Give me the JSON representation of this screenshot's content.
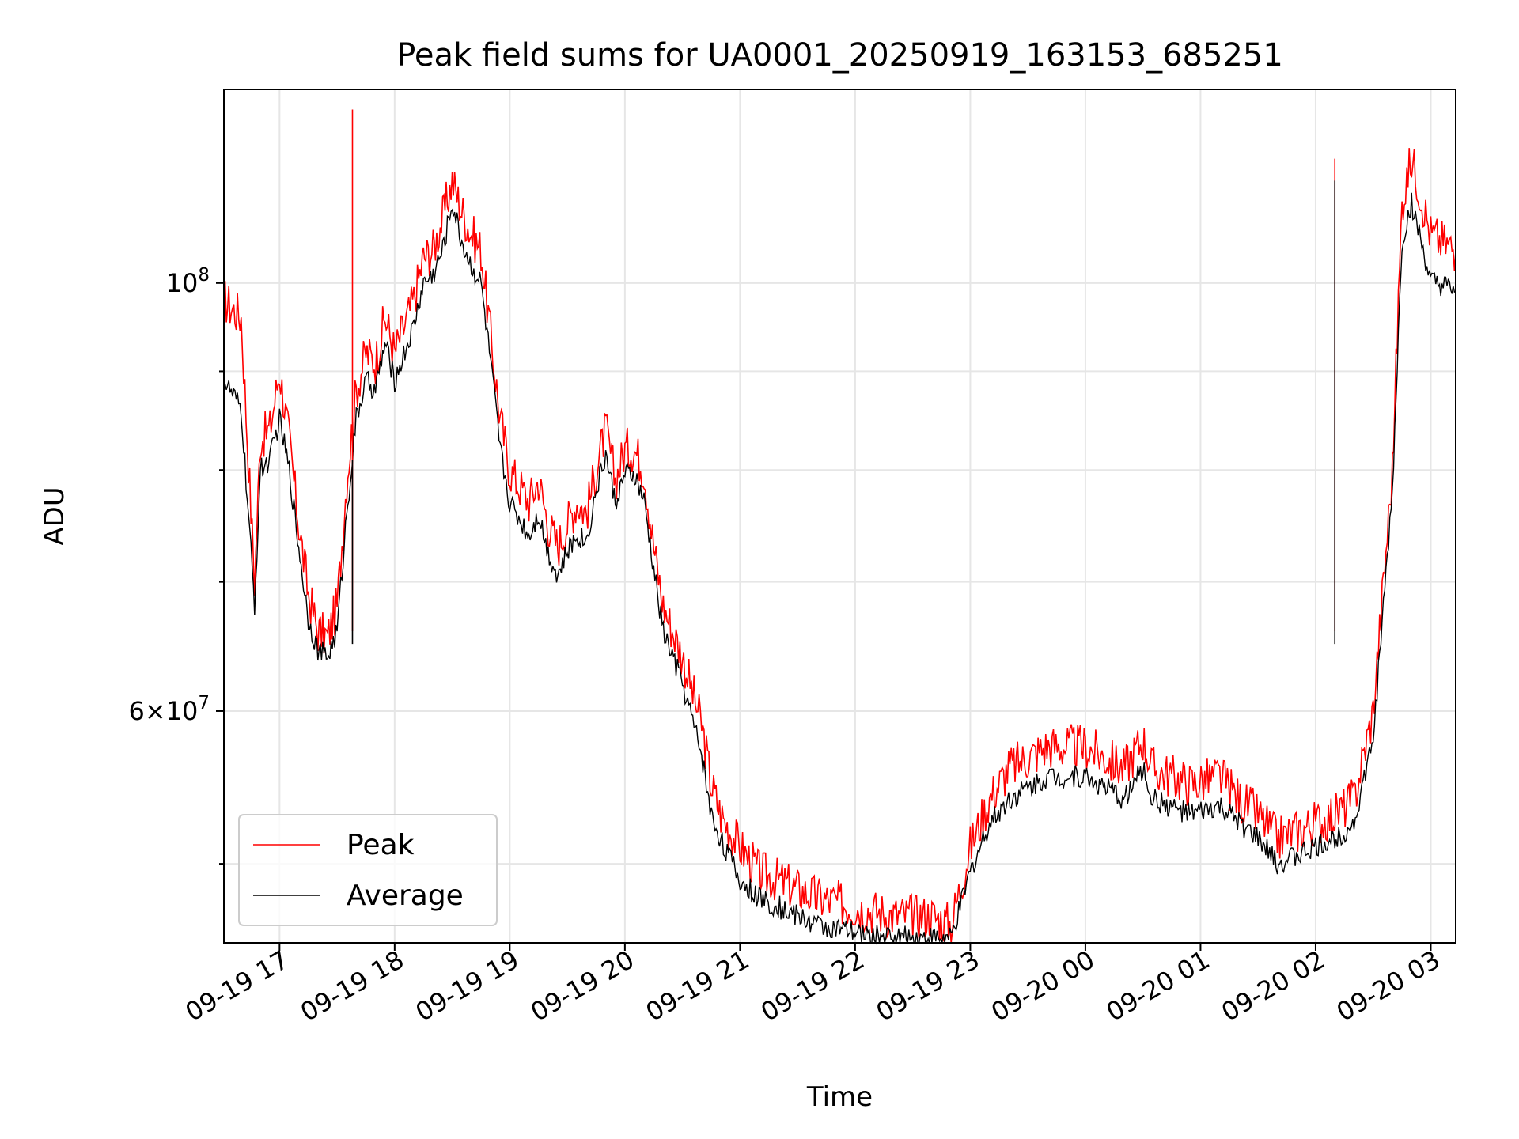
{
  "chart_data": {
    "type": "line",
    "title": "Peak field sums for UA0001_20250919_163153_685251",
    "xlabel": "Time",
    "ylabel": "ADU",
    "x_axis_type": "datetime",
    "xlim": [
      "2025-09-19 16:31",
      "2025-09-20 03:13"
    ],
    "x_ticks": [
      "2025-09-19 17:00",
      "2025-09-19 18:00",
      "2025-09-19 19:00",
      "2025-09-19 20:00",
      "2025-09-19 21:00",
      "2025-09-19 22:00",
      "2025-09-19 23:00",
      "2025-09-20 00:00",
      "2025-09-20 01:00",
      "2025-09-20 02:00",
      "2025-09-20 03:00"
    ],
    "x_tick_labels": [
      "09-19 17",
      "09-19 18",
      "09-19 19",
      "09-19 20",
      "09-19 21",
      "09-19 22",
      "09-19 23",
      "09-20 00",
      "09-20 01",
      "09-20 02",
      "09-20 03"
    ],
    "y_scale": "log",
    "ylim": [
      45500000,
      126000000
    ],
    "y_ticks": [
      100000000,
      60000000
    ],
    "y_tick_labels": [
      "10^8",
      "6×10^7"
    ],
    "y_minor_ticks": [
      50000000,
      70000000,
      80000000,
      90000000
    ],
    "grid": true,
    "legend_position": "lower left",
    "series": [
      {
        "name": "Peak",
        "color": "#ff0000",
        "x": [
          "2025-09-19 16:31",
          "2025-09-19 16:40",
          "2025-09-19 16:47",
          "2025-09-19 16:50",
          "2025-09-19 16:55",
          "2025-09-19 17:00",
          "2025-09-19 17:05",
          "2025-09-19 17:10",
          "2025-09-19 17:15",
          "2025-09-19 17:20",
          "2025-09-19 17:25",
          "2025-09-19 17:30",
          "2025-09-19 17:35",
          "2025-09-19 17:40",
          "2025-09-19 17:45",
          "2025-09-19 17:50",
          "2025-09-19 17:55",
          "2025-09-19 18:00",
          "2025-09-19 18:10",
          "2025-09-19 18:15",
          "2025-09-19 18:20",
          "2025-09-19 18:25",
          "2025-09-19 18:30",
          "2025-09-19 18:35",
          "2025-09-19 18:40",
          "2025-09-19 18:45",
          "2025-09-19 18:50",
          "2025-09-19 18:55",
          "2025-09-19 19:00",
          "2025-09-19 19:10",
          "2025-09-19 19:15",
          "2025-09-19 19:20",
          "2025-09-19 19:25",
          "2025-09-19 19:30",
          "2025-09-19 19:35",
          "2025-09-19 19:40",
          "2025-09-19 19:45",
          "2025-09-19 19:50",
          "2025-09-19 19:55",
          "2025-09-19 20:00",
          "2025-09-19 20:05",
          "2025-09-19 20:10",
          "2025-09-19 20:15",
          "2025-09-19 20:20",
          "2025-09-19 20:30",
          "2025-09-19 20:40",
          "2025-09-19 20:45",
          "2025-09-19 20:50",
          "2025-09-19 21:00",
          "2025-09-19 21:10",
          "2025-09-19 21:20",
          "2025-09-19 21:40",
          "2025-09-19 22:00",
          "2025-09-19 22:20",
          "2025-09-19 22:40",
          "2025-09-19 22:50",
          "2025-09-19 23:00",
          "2025-09-19 23:10",
          "2025-09-19 23:20",
          "2025-09-19 23:40",
          "2025-09-20 00:00",
          "2025-09-20 00:20",
          "2025-09-20 00:30",
          "2025-09-20 00:35",
          "2025-09-20 00:45",
          "2025-09-20 00:55",
          "2025-09-20 01:10",
          "2025-09-20 01:20",
          "2025-09-20 01:30",
          "2025-09-20 01:40",
          "2025-09-20 02:00",
          "2025-09-20 02:10",
          "2025-09-20 02:20",
          "2025-09-20 02:30",
          "2025-09-20 02:40",
          "2025-09-20 02:45",
          "2025-09-20 02:50",
          "2025-09-20 03:00",
          "2025-09-20 03:13"
        ],
        "values": [
          98000000,
          96000000,
          70000000,
          83000000,
          84000000,
          90000000,
          83000000,
          75000000,
          69000000,
          66000000,
          65500000,
          68000000,
          79000000,
          88000000,
          92000000,
          91000000,
          96000000,
          92000000,
          98000000,
          103000000,
          104000000,
          108000000,
          113000000,
          109000000,
          106000000,
          104000000,
          94000000,
          85000000,
          80000000,
          77000000,
          79000000,
          75000000,
          73000000,
          75000000,
          77000000,
          76000000,
          80000000,
          84000000,
          79000000,
          82000000,
          82000000,
          80000000,
          73000000,
          68000000,
          64000000,
          59000000,
          55000000,
          53000000,
          51000000,
          49500000,
          49000000,
          48000000,
          47500000,
          47000000,
          47000000,
          46500000,
          51000000,
          54000000,
          56000000,
          57500000,
          57500000,
          56000000,
          58000000,
          56000000,
          55500000,
          55000000,
          55500000,
          54000000,
          53000000,
          51500000,
          52500000,
          53000000,
          54000000,
          60000000,
          80000000,
          110000000,
          116000000,
          106000000,
          104000000
        ]
      },
      {
        "name": "Average",
        "color": "#000000",
        "x": [
          "2025-09-19 16:31",
          "2025-09-19 16:40",
          "2025-09-19 16:47",
          "2025-09-19 16:50",
          "2025-09-19 16:55",
          "2025-09-19 17:00",
          "2025-09-19 17:05",
          "2025-09-19 17:10",
          "2025-09-19 17:15",
          "2025-09-19 17:20",
          "2025-09-19 17:25",
          "2025-09-19 17:30",
          "2025-09-19 17:35",
          "2025-09-19 17:40",
          "2025-09-19 17:45",
          "2025-09-19 17:50",
          "2025-09-19 17:55",
          "2025-09-19 18:00",
          "2025-09-19 18:10",
          "2025-09-19 18:15",
          "2025-09-19 18:20",
          "2025-09-19 18:25",
          "2025-09-19 18:30",
          "2025-09-19 18:35",
          "2025-09-19 18:40",
          "2025-09-19 18:45",
          "2025-09-19 18:50",
          "2025-09-19 18:55",
          "2025-09-19 19:00",
          "2025-09-19 19:10",
          "2025-09-19 19:15",
          "2025-09-19 19:20",
          "2025-09-19 19:25",
          "2025-09-19 19:30",
          "2025-09-19 19:35",
          "2025-09-19 19:40",
          "2025-09-19 19:45",
          "2025-09-19 19:50",
          "2025-09-19 19:55",
          "2025-09-19 20:00",
          "2025-09-19 20:05",
          "2025-09-19 20:10",
          "2025-09-19 20:15",
          "2025-09-19 20:20",
          "2025-09-19 20:30",
          "2025-09-19 20:40",
          "2025-09-19 20:45",
          "2025-09-19 20:50",
          "2025-09-19 21:00",
          "2025-09-19 21:10",
          "2025-09-19 21:20",
          "2025-09-19 21:40",
          "2025-09-19 22:00",
          "2025-09-19 22:20",
          "2025-09-19 22:40",
          "2025-09-19 22:50",
          "2025-09-19 23:00",
          "2025-09-19 23:10",
          "2025-09-19 23:20",
          "2025-09-19 23:40",
          "2025-09-20 00:00",
          "2025-09-20 00:20",
          "2025-09-20 00:30",
          "2025-09-20 00:35",
          "2025-09-20 00:45",
          "2025-09-20 00:55",
          "2025-09-20 01:10",
          "2025-09-20 01:20",
          "2025-09-20 01:30",
          "2025-09-20 01:40",
          "2025-09-20 02:00",
          "2025-09-20 02:10",
          "2025-09-20 02:20",
          "2025-09-20 02:30",
          "2025-09-20 02:40",
          "2025-09-20 02:45",
          "2025-09-20 02:50",
          "2025-09-20 03:00",
          "2025-09-20 03:13"
        ],
        "values": [
          89000000,
          86000000,
          68000000,
          80000000,
          81000000,
          85000000,
          80000000,
          73000000,
          67000000,
          64500000,
          64000000,
          66000000,
          76000000,
          85000000,
          89000000,
          88000000,
          93000000,
          89000000,
          95000000,
          100000000,
          101000000,
          104000000,
          110000000,
          105000000,
          102000000,
          100000000,
          91000000,
          82000000,
          77000000,
          74000000,
          76000000,
          72500000,
          70500000,
          72500000,
          74000000,
          73500000,
          78000000,
          81500000,
          77000000,
          79500000,
          79500000,
          77000000,
          71000000,
          66000000,
          62000000,
          57000000,
          53000000,
          51500000,
          49000000,
          48000000,
          47500000,
          46500000,
          46000000,
          45800000,
          45800000,
          45700000,
          49500000,
          52500000,
          54000000,
          55500000,
          55500000,
          54000000,
          56000000,
          54000000,
          53500000,
          53000000,
          53500000,
          52500000,
          51500000,
          50000000,
          51000000,
          51500000,
          52500000,
          58000000,
          78000000,
          105000000,
          110000000,
          100000000,
          99000000
        ]
      }
    ],
    "spikes": [
      {
        "series": "Peak",
        "x": "2025-09-19 17:38",
        "value": 123000000
      },
      {
        "series": "Average",
        "x": "2025-09-19 17:38",
        "value": 81000000
      },
      {
        "series": "Peak",
        "x": "2025-09-20 02:10",
        "value": 116000000
      },
      {
        "series": "Average",
        "x": "2025-09-20 02:10",
        "value": 113000000
      }
    ]
  }
}
